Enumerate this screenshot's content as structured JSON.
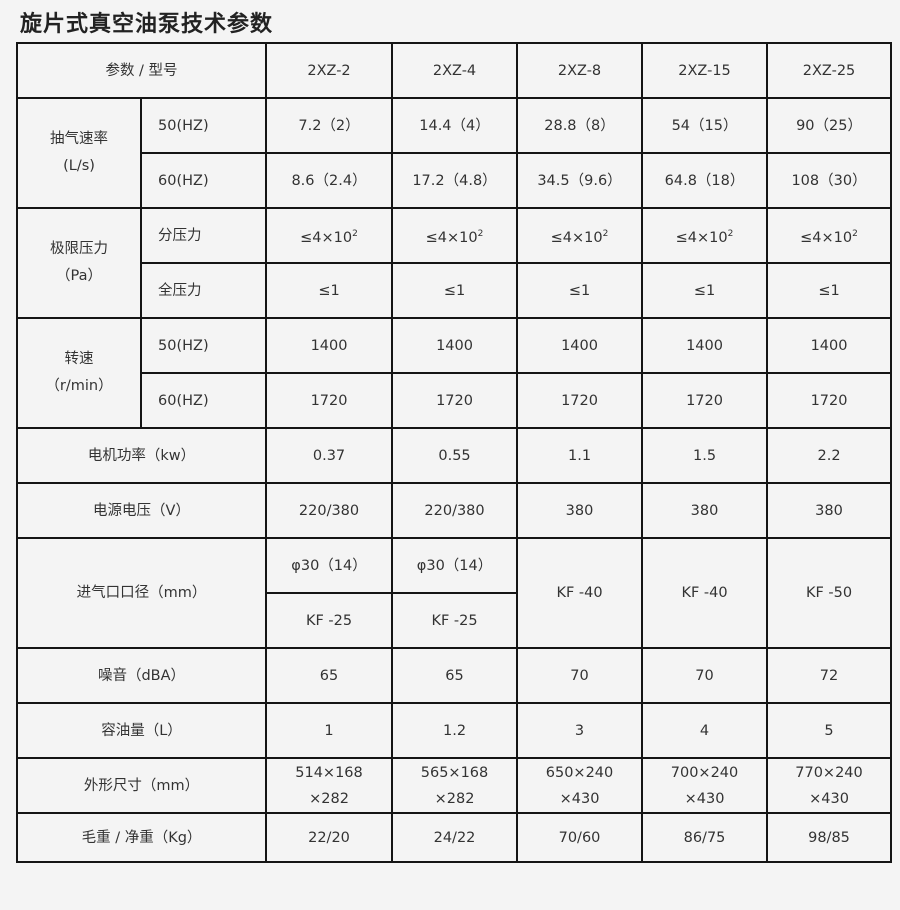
{
  "title": "旋片式真空油泵技术参数",
  "header": {
    "label": "参数 / 型号",
    "models": [
      "2XZ-2",
      "2XZ-4",
      "2XZ-8",
      "2XZ-15",
      "2XZ-25"
    ]
  },
  "pumping_speed": {
    "label": "抽气速率",
    "unit": "(L/s)",
    "rows": [
      {
        "label": "50(HZ)",
        "values": [
          "7.2（2）",
          "14.4（4）",
          "28.8（8）",
          "54（15）",
          "90（25）"
        ]
      },
      {
        "label": "60(HZ)",
        "values": [
          "8.6（2.4）",
          "17.2（4.8）",
          "34.5（9.6）",
          "64.8（18）",
          "108（30）"
        ]
      }
    ]
  },
  "ultimate_pressure": {
    "label": "极限压力",
    "unit": "（Pa）",
    "rows": [
      {
        "label": "分压力",
        "value_base": "≤4×10",
        "value_exp": "2"
      },
      {
        "label": "全压力",
        "values": [
          "≤1",
          "≤1",
          "≤1",
          "≤1",
          "≤1"
        ]
      }
    ]
  },
  "rotation_speed": {
    "label": "转速",
    "unit": "（r/min）",
    "rows": [
      {
        "label": "50(HZ)",
        "values": [
          "1400",
          "1400",
          "1400",
          "1400",
          "1400"
        ]
      },
      {
        "label": "60(HZ)",
        "values": [
          "1720",
          "1720",
          "1720",
          "1720",
          "1720"
        ]
      }
    ]
  },
  "motor_power": {
    "label": "电机功率（kw）",
    "values": [
      "0.37",
      "0.55",
      "1.1",
      "1.5",
      "2.2"
    ]
  },
  "voltage": {
    "label": "电源电压（V）",
    "values": [
      "220/380",
      "220/380",
      "380",
      "380",
      "380"
    ]
  },
  "inlet": {
    "label": "进气口口径（mm）",
    "row1": [
      "φ30（14）",
      "φ30（14）"
    ],
    "row2": [
      "KF -25",
      "KF -25"
    ],
    "merged": [
      "KF -40",
      "KF -40",
      "KF -50"
    ]
  },
  "noise": {
    "label": "噪音（dBA）",
    "values": [
      "65",
      "65",
      "70",
      "70",
      "72"
    ]
  },
  "oil_capacity": {
    "label": "容油量（L）",
    "values": [
      "1",
      "1.2",
      "3",
      "4",
      "5"
    ]
  },
  "dimensions": {
    "label": "外形尺寸（mm）",
    "values": [
      [
        "514×168",
        "×282"
      ],
      [
        "565×168",
        "×282"
      ],
      [
        "650×240",
        "×430"
      ],
      [
        "700×240",
        "×430"
      ],
      [
        "770×240",
        "×430"
      ]
    ]
  },
  "weight": {
    "label": "毛重 / 净重（Kg）",
    "values": [
      "22/20",
      "24/22",
      "70/60",
      "86/75",
      "98/85"
    ]
  }
}
